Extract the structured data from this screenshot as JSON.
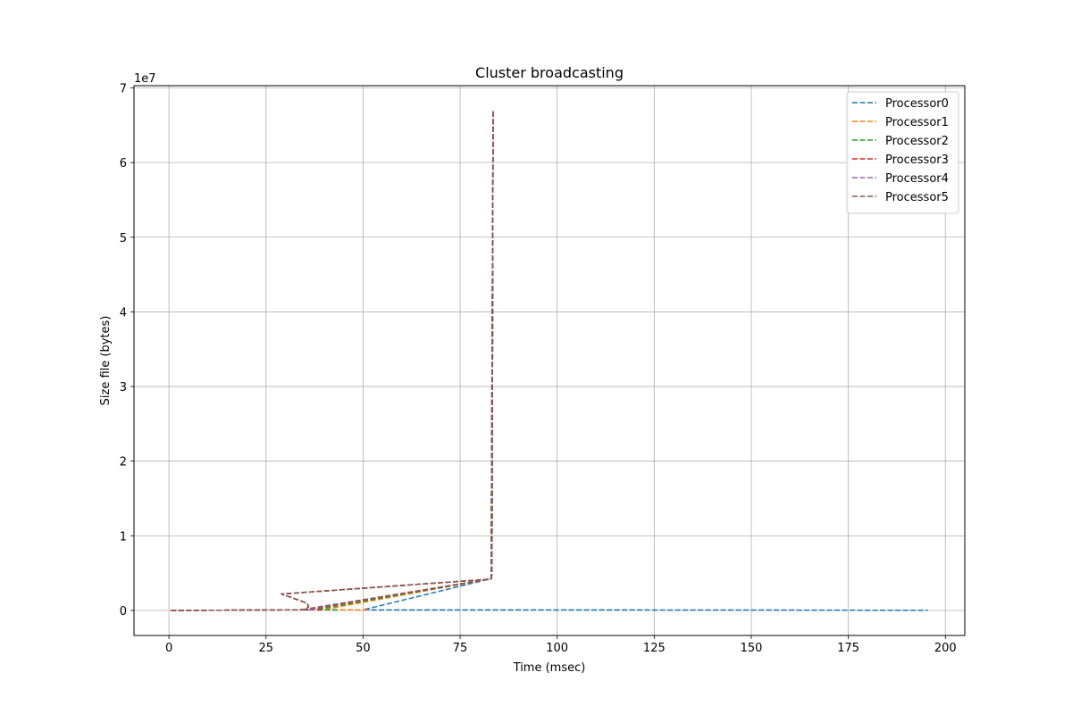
{
  "chart_data": {
    "type": "line",
    "title": "Cluster broadcasting",
    "xlabel": "Time (msec)",
    "ylabel": "Size file (bytes)",
    "y_offset_label": "1e7",
    "xlim": [
      -9,
      205
    ],
    "ylim": [
      -3350000,
      70300000
    ],
    "y_scale_factor": 10000000,
    "xticks": [
      0,
      25,
      50,
      75,
      100,
      125,
      150,
      175,
      200
    ],
    "yticks": [
      0,
      10000000,
      20000000,
      30000000,
      40000000,
      50000000,
      60000000,
      70000000
    ],
    "ytick_labels": [
      "0",
      "1",
      "2",
      "3",
      "4",
      "5",
      "6",
      "7"
    ],
    "grid": true,
    "legend_position": "top-right",
    "line_style": "dashed",
    "series": [
      {
        "name": "Processor0",
        "color": "#1f77b4",
        "x": [
          0.5,
          10,
          35,
          36,
          35.5,
          29,
          83,
          83.2,
          83.5,
          83,
          82.5,
          50,
          100,
          150,
          195.5
        ],
        "y": [
          0,
          20000,
          100000,
          500000,
          1000000,
          2200000,
          4200000,
          5000000,
          67000000,
          4300000,
          4200000,
          80000,
          70000,
          60000,
          20000
        ]
      },
      {
        "name": "Processor1",
        "color": "#ff7f0e",
        "x": [
          0.5,
          10,
          35,
          36,
          35.5,
          29,
          83,
          83.2,
          83.5,
          83,
          82.5,
          40,
          52
        ],
        "y": [
          0,
          20000,
          100000,
          500000,
          1000000,
          2200000,
          4200000,
          5000000,
          67000000,
          4300000,
          4200000,
          120000,
          60000
        ]
      },
      {
        "name": "Processor2",
        "color": "#2ca02c",
        "x": [
          0.5,
          10,
          35,
          36,
          35.5,
          29,
          83,
          83.2,
          83.5,
          83,
          82.5,
          38,
          44
        ],
        "y": [
          0,
          20000,
          100000,
          500000,
          1000000,
          2200000,
          4200000,
          5000000,
          67000000,
          4300000,
          4200000,
          120000,
          60000
        ]
      },
      {
        "name": "Processor3",
        "color": "#d62728",
        "x": [
          0.5,
          10,
          35,
          36,
          35.5,
          29,
          83,
          83.2,
          83.5,
          83,
          82.5,
          36,
          40
        ],
        "y": [
          0,
          20000,
          100000,
          500000,
          1000000,
          2200000,
          4200000,
          5000000,
          67000000,
          4300000,
          4200000,
          120000,
          60000
        ]
      },
      {
        "name": "Processor4",
        "color": "#9467bd",
        "x": [
          0.5,
          10,
          35,
          36,
          35.5,
          29,
          83,
          83.2,
          83.5,
          83,
          82.5,
          35,
          38
        ],
        "y": [
          0,
          20000,
          100000,
          500000,
          1000000,
          2200000,
          4200000,
          5000000,
          67000000,
          4300000,
          4200000,
          120000,
          60000
        ]
      },
      {
        "name": "Processor5",
        "color": "#8c564b",
        "x": [
          0.5,
          10,
          35,
          36,
          35.5,
          29,
          83,
          83.2,
          83.5,
          83,
          82.5,
          34.5,
          36
        ],
        "y": [
          0,
          20000,
          100000,
          500000,
          1000000,
          2200000,
          4200000,
          5000000,
          67000000,
          4300000,
          4200000,
          120000,
          60000
        ]
      }
    ]
  }
}
